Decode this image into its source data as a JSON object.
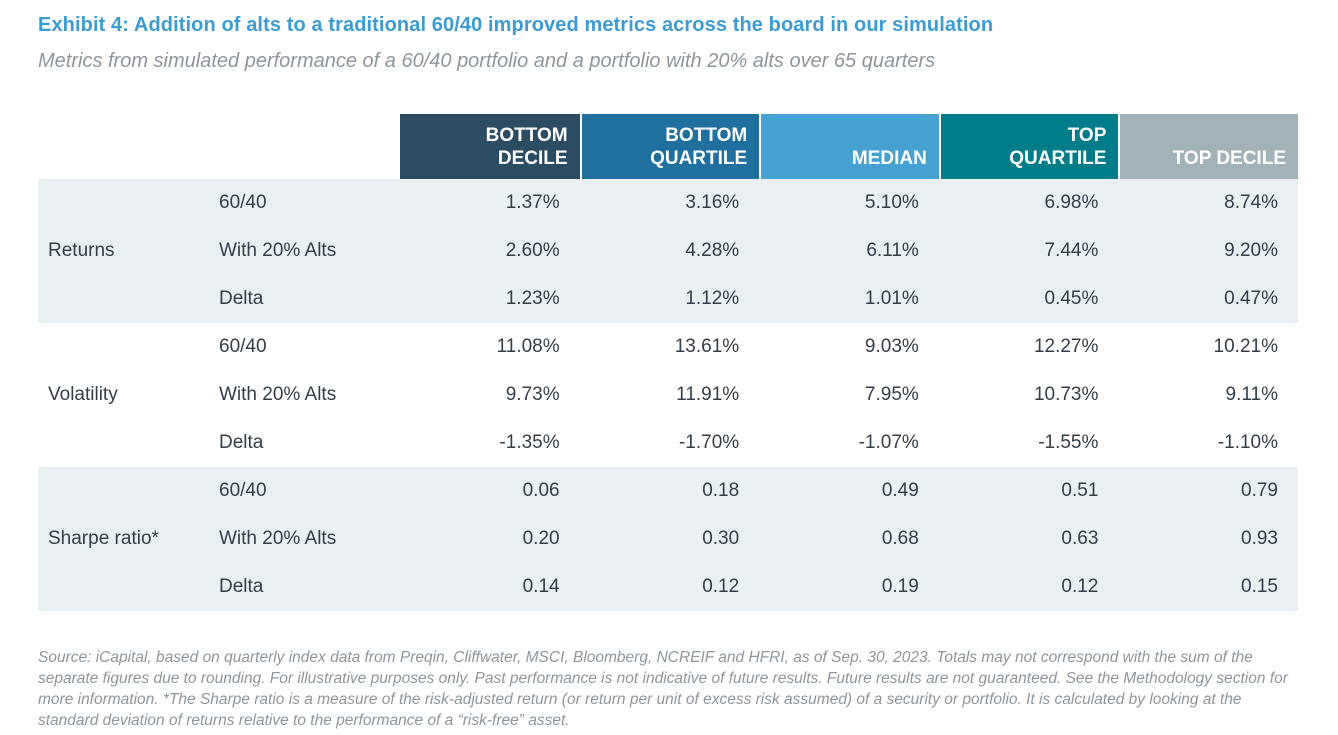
{
  "title": "Exhibit 4: Addition of alts to a traditional 60/40 improved metrics across the board in our simulation",
  "subtitle": "Metrics from simulated performance of a 60/40 portfolio and a portfolio with 20% alts over 65 quarters",
  "colors": {
    "title_blue": "#3b9cd3",
    "muted_gray": "#8d969d",
    "header_bottom_decile": "#2b4d64",
    "header_bottom_quartile": "#1f6f9f",
    "header_median": "#45a1d2",
    "header_top_quartile": "#017d89",
    "header_top_decile": "#a2b2b9",
    "band_shaded": "#eaeff1",
    "band_plain": "#ffffff",
    "text_dark": "#333e48"
  },
  "chart_data": {
    "type": "table",
    "title": "Addition of alts to a traditional 60/40 improved metrics across the board in our simulation",
    "columns": [
      "BOTTOM DECILE",
      "BOTTOM QUARTILE",
      "MEDIAN",
      "TOP QUARTILE",
      "TOP DECILE"
    ],
    "sections": [
      {
        "metric": "Returns",
        "rows": [
          {
            "label": "60/40",
            "values": [
              "1.37%",
              "3.16%",
              "5.10%",
              "6.98%",
              "8.74%"
            ]
          },
          {
            "label": "With 20% Alts",
            "values": [
              "2.60%",
              "4.28%",
              "6.11%",
              "7.44%",
              "9.20%"
            ]
          },
          {
            "label": "Delta",
            "values": [
              "1.23%",
              "1.12%",
              "1.01%",
              "0.45%",
              "0.47%"
            ]
          }
        ]
      },
      {
        "metric": "Volatility",
        "rows": [
          {
            "label": "60/40",
            "values": [
              "11.08%",
              "13.61%",
              "9.03%",
              "12.27%",
              "10.21%"
            ]
          },
          {
            "label": "With 20% Alts",
            "values": [
              "9.73%",
              "11.91%",
              "7.95%",
              "10.73%",
              "9.11%"
            ]
          },
          {
            "label": "Delta",
            "values": [
              "-1.35%",
              "-1.70%",
              "-1.07%",
              "-1.55%",
              "-1.10%"
            ]
          }
        ]
      },
      {
        "metric": "Sharpe ratio*",
        "rows": [
          {
            "label": "60/40",
            "values": [
              "0.06",
              "0.18",
              "0.49",
              "0.51",
              "0.79"
            ]
          },
          {
            "label": "With 20% Alts",
            "values": [
              "0.20",
              "0.30",
              "0.68",
              "0.63",
              "0.93"
            ]
          },
          {
            "label": "Delta",
            "values": [
              "0.14",
              "0.12",
              "0.19",
              "0.12",
              "0.15"
            ]
          }
        ]
      }
    ]
  },
  "footnote": "Source: iCapital, based on quarterly index data from Preqin, Cliffwater, MSCI, Bloomberg, NCREIF and HFRI, as of Sep.  30, 2023. Totals may not correspond with the sum of the separate figures due to rounding. For illustrative purposes only. Past performance is not indicative of future results. Future results are not guaranteed. See the Methodology section for more information. *The Sharpe ratio is a measure of the risk-adjusted return (or return per unit of excess risk assumed) of a security or portfolio. It is calculated by looking at the standard deviation of returns relative to the performance of a “risk-free” asset."
}
